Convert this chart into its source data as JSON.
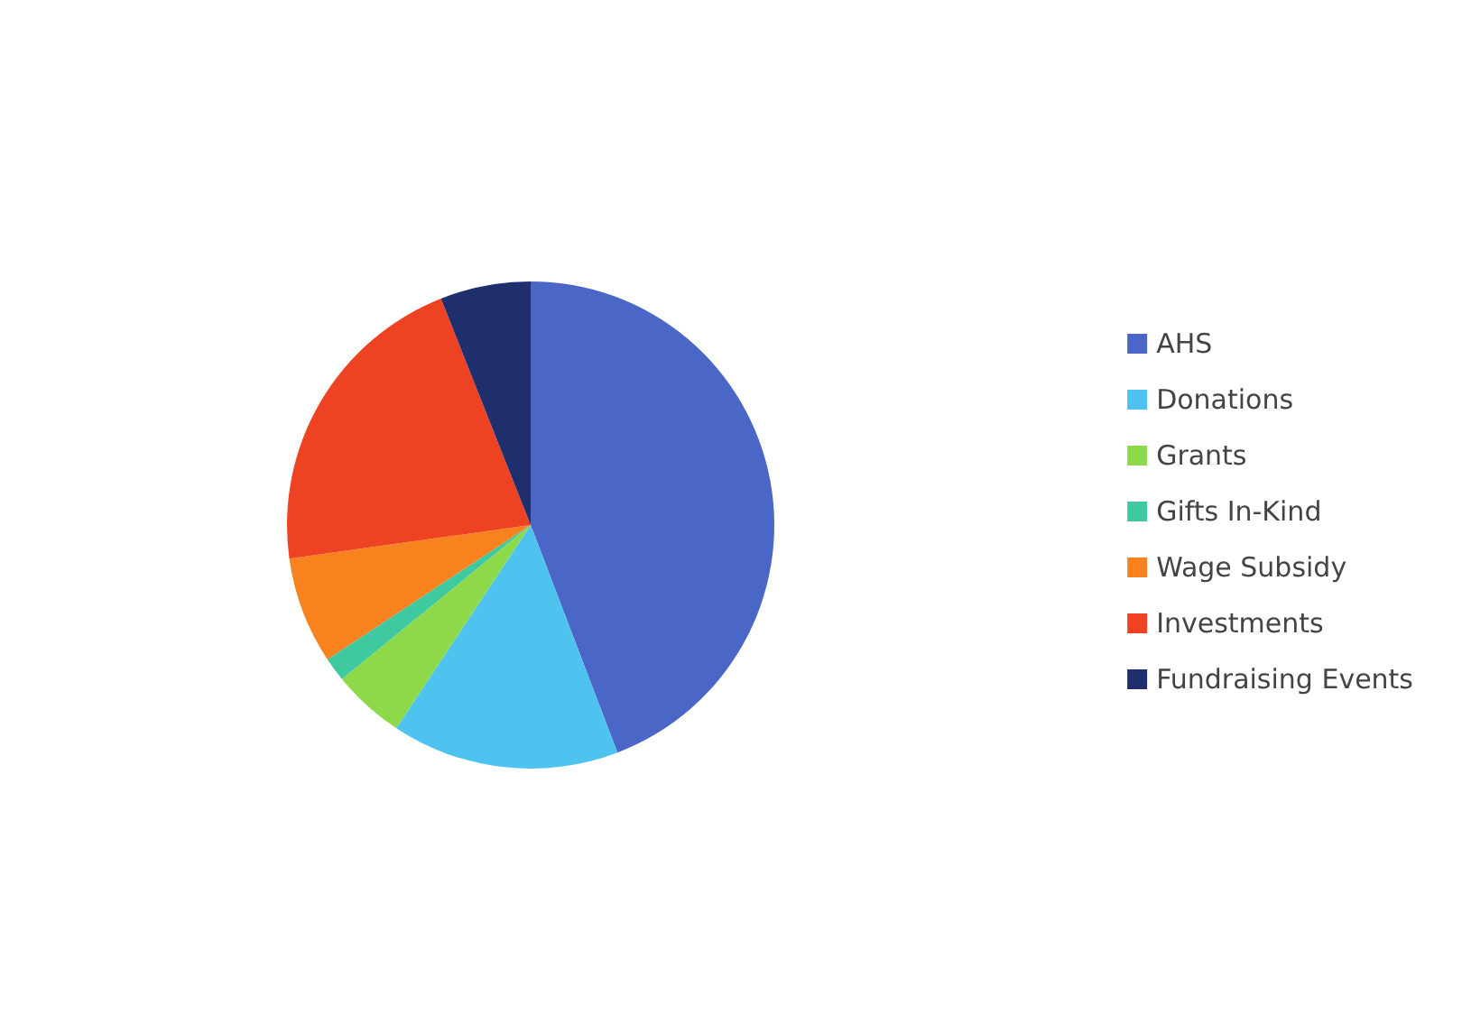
{
  "chart_data": {
    "type": "pie",
    "categories": [
      "AHS",
      "Donations",
      "Grants",
      "Gifts In-Kind",
      "Wage Subsidy",
      "Investments",
      "Fundraising Events"
    ],
    "values": [
      44.2,
      15.1,
      4.8,
      1.6,
      7.1,
      21.2,
      6
    ],
    "colors": [
      "#4a67c8",
      "#4fc3ef",
      "#8ed94a",
      "#3ec9a0",
      "#f7821e",
      "#ee4322",
      "#1f2f6e"
    ],
    "legend": "right"
  }
}
